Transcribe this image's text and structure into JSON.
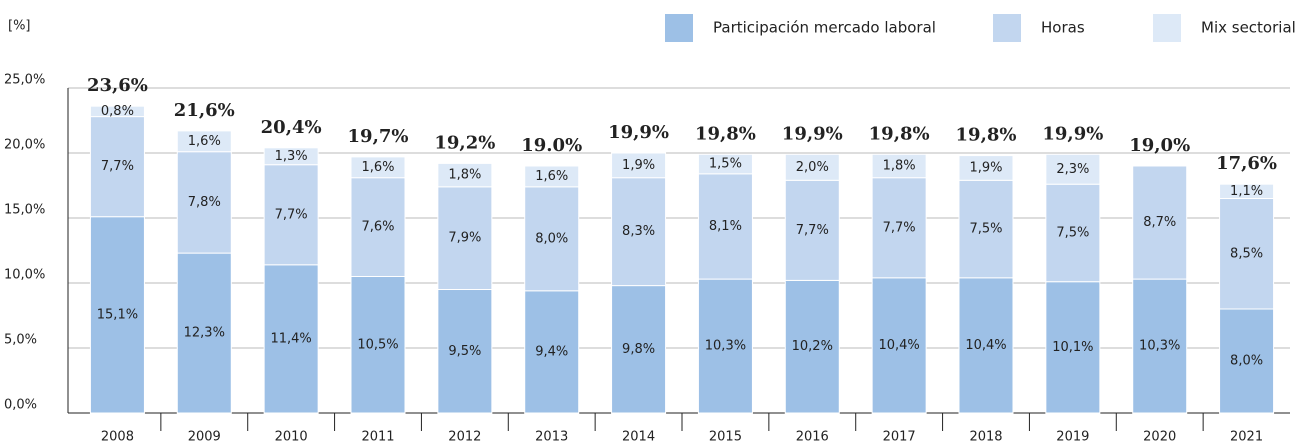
{
  "chart_data": {
    "type": "stacked-bar",
    "y_unit_label": "[%]",
    "categories": [
      "2008",
      "2009",
      "2010",
      "2011",
      "2012",
      "2013",
      "2014",
      "2015",
      "2016",
      "2017",
      "2018",
      "2019",
      "2020",
      "2021"
    ],
    "series": [
      {
        "name": "Participación mercado laboral",
        "color": "#9dc0e6",
        "values": [
          15.1,
          12.3,
          11.4,
          10.5,
          9.5,
          9.4,
          9.8,
          10.3,
          10.2,
          10.4,
          10.4,
          10.1,
          10.3,
          8.0
        ],
        "value_labels": [
          "15,1%",
          "12,3%",
          "11,4%",
          "10,5%",
          "9,5%",
          "9,4%",
          "9,8%",
          "10,3%",
          "10,2%",
          "10,4%",
          "10,4%",
          "10,1%",
          "10,3%",
          "8,0%"
        ]
      },
      {
        "name": "Horas",
        "color": "#c2d6ef",
        "values": [
          7.7,
          7.8,
          7.7,
          7.6,
          7.9,
          8.0,
          8.3,
          8.1,
          7.7,
          7.7,
          7.5,
          7.5,
          8.7,
          8.5
        ],
        "value_labels": [
          "7,7%",
          "7,8%",
          "7,7%",
          "7,6%",
          "7,9%",
          "8,0%",
          "8,3%",
          "8,1%",
          "7,7%",
          "7,7%",
          "7,5%",
          "7,5%",
          "8,7%",
          "8,5%"
        ]
      },
      {
        "name": "Mix sectorial",
        "color": "#dde9f7",
        "values": [
          0.8,
          1.6,
          1.3,
          1.6,
          1.8,
          1.6,
          1.9,
          1.5,
          2.0,
          1.8,
          1.9,
          2.3,
          null,
          1.1
        ],
        "value_labels": [
          "0,8%",
          "1,6%",
          "1,3%",
          "1,6%",
          "1,8%",
          "1,6%",
          "1,9%",
          "1,5%",
          "2,0%",
          "1,8%",
          "1,9%",
          "2,3%",
          null,
          "1,1%"
        ]
      }
    ],
    "totals": {
      "values": [
        23.6,
        21.6,
        20.4,
        19.7,
        19.2,
        19.0,
        19.9,
        19.8,
        19.9,
        19.8,
        19.8,
        19.9,
        19.0,
        17.6
      ],
      "value_labels": [
        "23,6%",
        "21,6%",
        "20,4%",
        "19,7%",
        "19,2%",
        "19.0%",
        "19,9%",
        "19,8%",
        "19,9%",
        "19,8%",
        "19,8%",
        "19,9%",
        "19,0%",
        "17,6%"
      ]
    },
    "ylim": [
      0,
      25
    ],
    "yticks": [
      {
        "value": 0,
        "label": "0,0%"
      },
      {
        "value": 5,
        "label": "5,0%"
      },
      {
        "value": 10,
        "label": "10,0%"
      },
      {
        "value": 15,
        "label": "15,0%"
      },
      {
        "value": 20,
        "label": "20,0%"
      },
      {
        "value": 25,
        "label": "25,0%"
      }
    ],
    "grid": true,
    "legend": "top-right"
  }
}
